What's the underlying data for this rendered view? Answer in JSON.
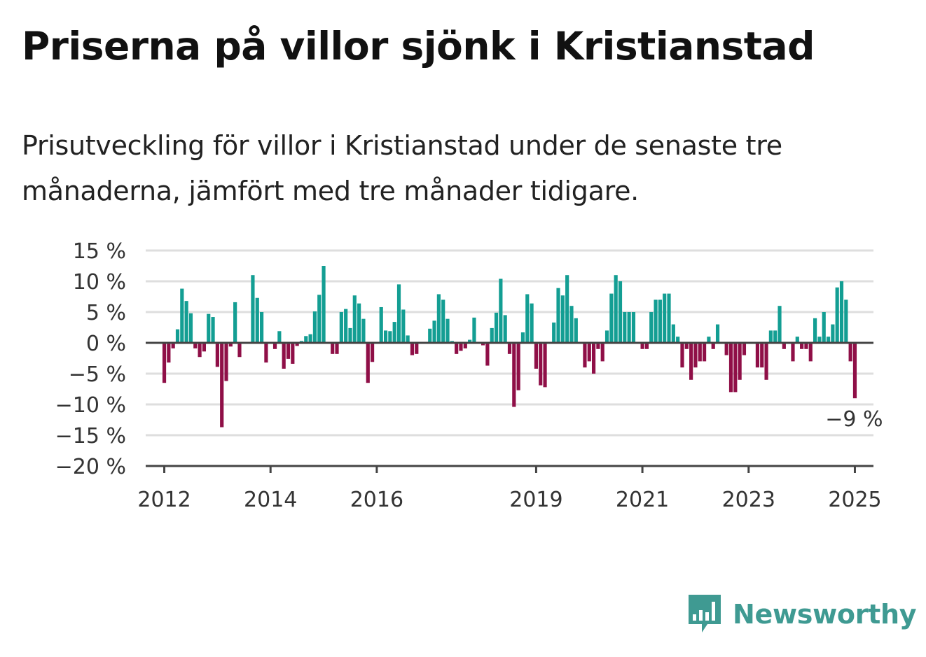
{
  "title": "Priserna på villor sjönk i Kristianstad",
  "subtitle": "Prisutveckling för villor i Kristianstad under de senaste tre månaderna, jämfört med tre månader tidigare.",
  "brand": {
    "name": "Newsworthy",
    "icon": "newsworthy-logo-icon"
  },
  "colors": {
    "positive": "#139e93",
    "negative": "#8f0f47",
    "grid": "#dedede",
    "axis": "#444444"
  },
  "chart_data": {
    "type": "bar",
    "xlabel": "",
    "ylabel": "",
    "ylim": [
      -20,
      15
    ],
    "yticks": [
      15,
      10,
      5,
      0,
      -5,
      -10,
      -15,
      -20
    ],
    "ytick_labels": [
      "15 %",
      "10 %",
      "5 %",
      "0 %",
      "−5 %",
      "−10 %",
      "−15 %",
      "−20 %"
    ],
    "xlim": [
      2011.65,
      2025.35
    ],
    "xticks": [
      2012,
      2014,
      2016,
      2019,
      2021,
      2023,
      2025
    ],
    "xtick_labels": [
      "2012",
      "2014",
      "2016",
      "2019",
      "2021",
      "2023",
      "2025"
    ],
    "grid": true,
    "start": "2012-01",
    "frequency": "monthly",
    "values": [
      -6.5,
      -3.2,
      -0.9,
      2.2,
      8.8,
      6.8,
      4.8,
      -0.9,
      -2.3,
      -1.4,
      4.7,
      4.2,
      -3.9,
      -13.7,
      -6.2,
      -0.6,
      6.6,
      -2.3,
      0,
      0,
      11.0,
      7.3,
      5.0,
      -3.2,
      0,
      -1.0,
      1.9,
      -4.2,
      -2.6,
      -3.4,
      -0.5,
      0.3,
      1.1,
      1.4,
      5.1,
      7.8,
      12.5,
      0,
      -1.8,
      -1.8,
      5.0,
      5.5,
      2.4,
      7.7,
      6.4,
      3.9,
      -6.5,
      -3.1,
      0,
      5.8,
      2.0,
      1.9,
      3.4,
      9.5,
      5.4,
      1.2,
      -2.0,
      -1.8,
      0,
      0,
      2.3,
      3.6,
      7.9,
      7.0,
      3.9,
      0.3,
      -1.8,
      -1.3,
      -0.9,
      0.5,
      4.1,
      0,
      -0.4,
      -3.7,
      2.4,
      4.9,
      10.4,
      4.5,
      -1.8,
      -10.4,
      -7.7,
      1.7,
      7.9,
      6.4,
      -4.2,
      -6.9,
      -7.2,
      0,
      3.3,
      8.9,
      7.7,
      11.0,
      6.0,
      4.0,
      0,
      -4.0,
      -3.0,
      -5.0,
      -1.0,
      -3.0,
      2.0,
      8.0,
      11.0,
      10.0,
      5.0,
      5.0,
      5.0,
      0,
      -1.0,
      -1.0,
      5.0,
      7.0,
      7.0,
      8.0,
      8.0,
      3.0,
      1.0,
      -4.0,
      -1.0,
      -6.0,
      -4.0,
      -3.0,
      -3.0,
      1.0,
      -1.0,
      3.0,
      0,
      -2.0,
      -8.0,
      -8.0,
      -6.0,
      -2.0,
      0,
      0,
      -4.0,
      -4.0,
      -6.0,
      2.0,
      2.0,
      6.0,
      -1.0,
      0,
      -3.0,
      1.0,
      -1.0,
      -1.0,
      -3.0,
      4.0,
      1.0,
      5.0,
      1.0,
      3.0,
      9.0,
      10.0,
      7.0,
      -3.0,
      -9.0
    ],
    "annotation": {
      "text": "−9 %",
      "value": -9,
      "label_for": "last"
    }
  }
}
